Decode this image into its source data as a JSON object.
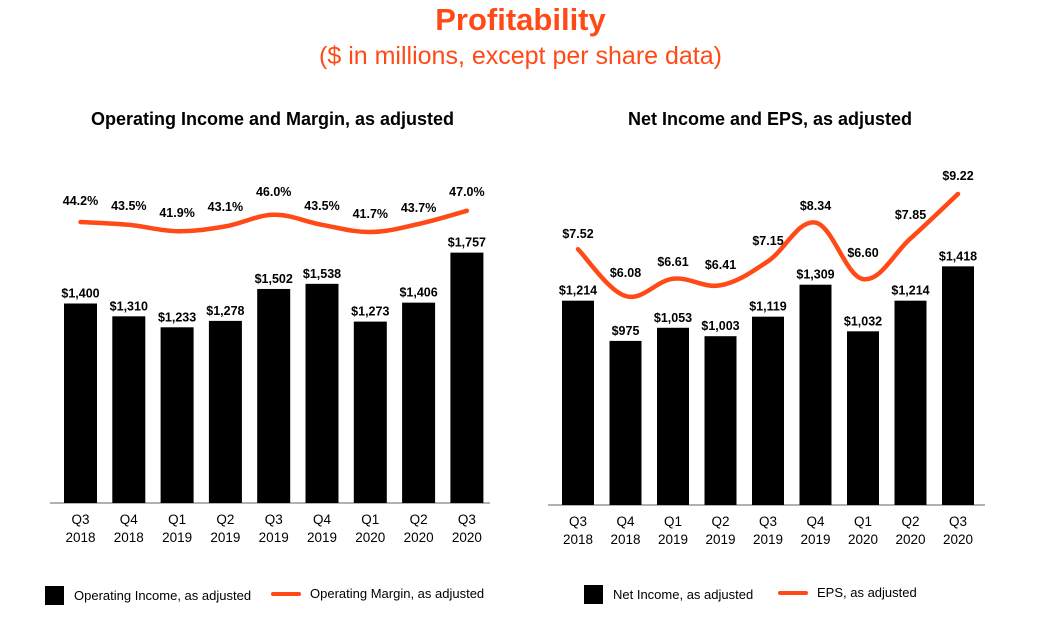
{
  "header": {
    "title": "Profitability",
    "subtitle": "($ in millions, except per share data)"
  },
  "colors": {
    "accent": "#ff4a17",
    "bar": "#000000",
    "axis": "#999999"
  },
  "legend": {
    "left_bar": "Operating Income, as adjusted",
    "left_line": "Operating Margin, as adjusted",
    "right_bar": "Net Income, as adjusted",
    "right_line": "EPS, as adjusted"
  },
  "chart_data": [
    {
      "type": "bar",
      "title": "Operating Income and Margin, as adjusted",
      "categories": [
        [
          "Q3",
          "2018"
        ],
        [
          "Q4",
          "2018"
        ],
        [
          "Q1",
          "2019"
        ],
        [
          "Q2",
          "2019"
        ],
        [
          "Q3",
          "2019"
        ],
        [
          "Q4",
          "2019"
        ],
        [
          "Q1",
          "2020"
        ],
        [
          "Q2",
          "2020"
        ],
        [
          "Q3",
          "2020"
        ]
      ],
      "series": [
        {
          "name": "Operating Income, as adjusted",
          "type": "bar",
          "values": [
            1400,
            1310,
            1233,
            1278,
            1502,
            1538,
            1273,
            1406,
            1757
          ],
          "labels": [
            "$1,400",
            "$1,310",
            "$1,233",
            "$1,278",
            "$1,502",
            "$1,538",
            "$1,273",
            "$1,406",
            "$1,757"
          ]
        },
        {
          "name": "Operating Margin, as adjusted",
          "type": "line",
          "values": [
            44.2,
            43.5,
            41.9,
            43.1,
            46.0,
            43.5,
            41.7,
            43.7,
            47.0
          ],
          "labels": [
            "44.2%",
            "43.5%",
            "41.9%",
            "43.1%",
            "46.0%",
            "43.5%",
            "41.7%",
            "43.7%",
            "47.0%"
          ]
        }
      ],
      "legend_position": "bottom"
    },
    {
      "type": "bar",
      "title": "Net Income and EPS, as adjusted",
      "categories": [
        [
          "Q3",
          "2018"
        ],
        [
          "Q4",
          "2018"
        ],
        [
          "Q1",
          "2019"
        ],
        [
          "Q2",
          "2019"
        ],
        [
          "Q3",
          "2019"
        ],
        [
          "Q4",
          "2019"
        ],
        [
          "Q1",
          "2020"
        ],
        [
          "Q2",
          "2020"
        ],
        [
          "Q3",
          "2020"
        ]
      ],
      "series": [
        {
          "name": "Net Income, as adjusted",
          "type": "bar",
          "values": [
            1214,
            975,
            1053,
            1003,
            1119,
            1309,
            1032,
            1214,
            1418
          ],
          "labels": [
            "$1,214",
            "$975",
            "$1,053",
            "$1,003",
            "$1,119",
            "$1,309",
            "$1,032",
            "$1,214",
            "$1,418"
          ]
        },
        {
          "name": "EPS, as adjusted",
          "type": "line",
          "values": [
            7.52,
            6.08,
            6.61,
            6.41,
            7.15,
            8.34,
            6.6,
            7.85,
            9.22
          ],
          "labels": [
            "$7.52",
            "$6.08",
            "$6.61",
            "$6.41",
            "$7.15",
            "$8.34",
            "$6.60",
            "$7.85",
            "$9.22"
          ]
        }
      ],
      "legend_position": "bottom"
    }
  ]
}
